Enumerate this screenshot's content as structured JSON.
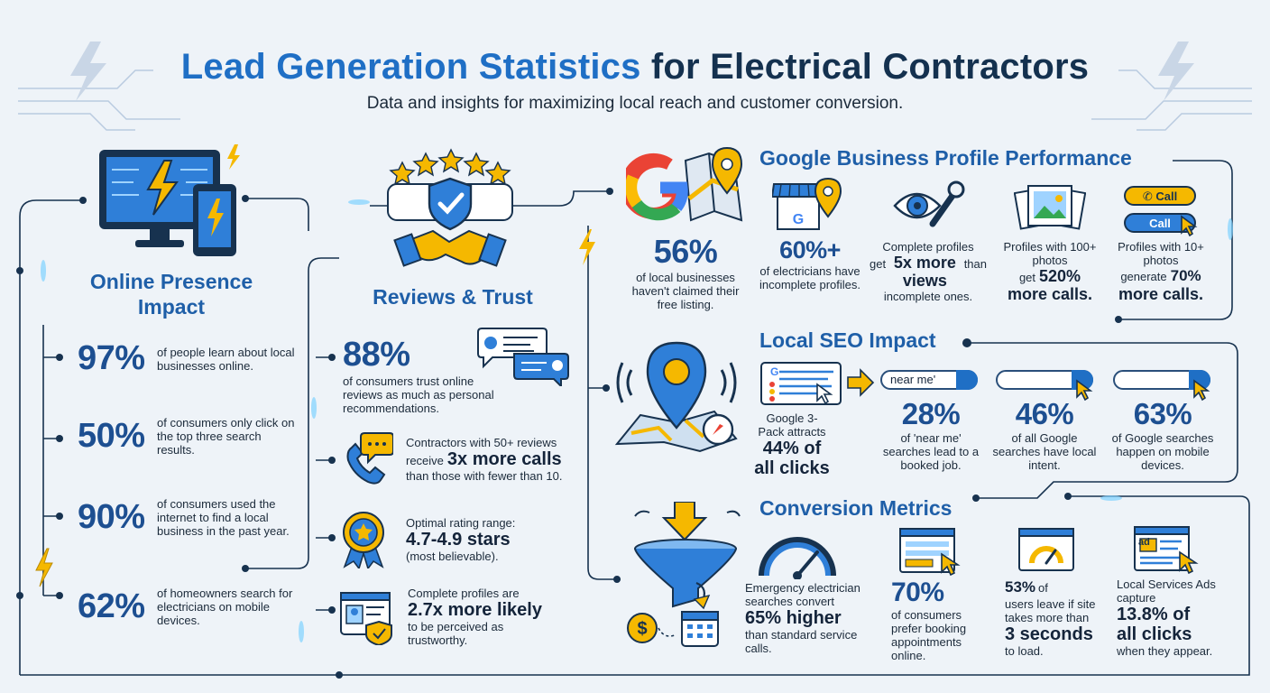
{
  "header": {
    "title_blue": "Lead Generation Statistics",
    "title_dark": "for Electrical Contractors",
    "subtitle": "Data and insights for maximizing local reach and customer conversion."
  },
  "colors": {
    "blue": "#1f6fc5",
    "navy": "#1d4f91",
    "yellow": "#f5b800",
    "background": "#eef3f8"
  },
  "online_presence": {
    "title_line1": "Online Presence",
    "title_line2": "Impact",
    "icon": "monitor-phone-lightning-icon",
    "stats": [
      {
        "value": "97%",
        "text": "of people learn about local businesses online."
      },
      {
        "value": "50%",
        "text": "of consumers only click on the top three search results."
      },
      {
        "value": "90%",
        "text": "of consumers used the internet to find a local business in the past year."
      },
      {
        "value": "62%",
        "text": "of homeowners search for electricians on mobile devices."
      }
    ]
  },
  "reviews_trust": {
    "title": "Reviews & Trust",
    "icon": "handshake-shield-stars-icon",
    "stat_88": {
      "value": "88%",
      "text": "of consumers trust online reviews as much as personal recommendations."
    },
    "calls": {
      "pre": "Contractors with 50+ reviews",
      "receive": "receive",
      "big": "3x more calls",
      "post": "than those with fewer than 10."
    },
    "rating": {
      "pre": "Optimal rating range:",
      "big": "4.7-4.9 stars",
      "post": "(most believable)."
    },
    "complete": {
      "pre": "Complete profiles are",
      "big": "2.7x more likely",
      "post": "to be perceived as trustworthy."
    }
  },
  "google_claim": {
    "value": "56%",
    "text": "of local businesses haven't claimed their free listing."
  },
  "gbp": {
    "title": "Google Business Profile Performance",
    "incomplete": {
      "value": "60%+",
      "text": "of electricians have incomplete profiles."
    },
    "views": {
      "pre": "Complete profiles",
      "get": "get",
      "big": "5x more views",
      "than": "than",
      "post": "incomplete ones."
    },
    "photos100": {
      "pre": "Profiles with 100+ photos",
      "get": "get",
      "big1": "520%",
      "big2": "more calls."
    },
    "photos10": {
      "pre": "Profiles with 10+ photos",
      "gen": "generate",
      "big1": "70%",
      "big2": "more calls."
    },
    "call_label_1": "Call",
    "call_label_2": "Call"
  },
  "local_seo": {
    "title": "Local SEO Impact",
    "pack": {
      "pre": "Google 3-Pack attracts",
      "big1": "44% of",
      "big2": "all clicks"
    },
    "search_term": "near me'",
    "near_me": {
      "value": "28%",
      "text": "of 'near me' searches lead to a booked job."
    },
    "intent": {
      "value": "46%",
      "text": "of all Google searches have local intent."
    },
    "mobile": {
      "value": "63%",
      "text": "of Google searches happen on mobile devices."
    }
  },
  "conversion": {
    "title": "Conversion Metrics",
    "emergency": {
      "pre": "Emergency electrician searches convert",
      "big": "65% higher",
      "post": "than standard service calls."
    },
    "booking": {
      "value": "70%",
      "text": "of consumers prefer booking appointments online."
    },
    "speed": {
      "value": "53%",
      "of": "of",
      "mid": "users leave if site takes more than",
      "big": "3 seconds",
      "post": "to load."
    },
    "lsa": {
      "pre": "Local Services Ads capture",
      "big1": "13.8% of",
      "big2": "all clicks",
      "post": "when they appear."
    },
    "ad_label": "ad"
  }
}
